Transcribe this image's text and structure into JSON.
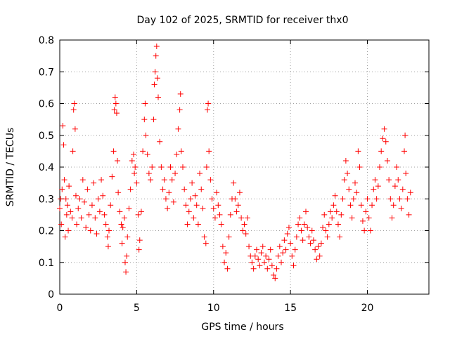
{
  "chart_data": {
    "type": "scatter",
    "title": "Day 102 of 2025, SRMTID for receiver thx0",
    "xlabel": "GPS time / hours",
    "ylabel": "SRMTID / TECUs",
    "xlim": [
      0,
      24
    ],
    "ylim": [
      0,
      0.8
    ],
    "xticks": [
      0,
      5,
      10,
      15,
      20
    ],
    "yticks": [
      0,
      0.1,
      0.2,
      0.3,
      0.4,
      0.5,
      0.6,
      0.7,
      0.8
    ],
    "xtick_labels": [
      "0",
      "5",
      "10",
      "15",
      "20"
    ],
    "ytick_labels": [
      "0",
      "0.1",
      "0.2",
      "0.3",
      "0.4",
      "0.5",
      "0.6",
      "0.7",
      "0.8"
    ],
    "grid": true,
    "marker": "+",
    "color": "#ff0000",
    "series": [
      {
        "name": "thx0",
        "points": [
          [
            0.0,
            0.27
          ],
          [
            0.05,
            0.3
          ],
          [
            0.1,
            0.22
          ],
          [
            0.15,
            0.33
          ],
          [
            0.2,
            0.53
          ],
          [
            0.25,
            0.47
          ],
          [
            0.3,
            0.36
          ],
          [
            0.35,
            0.18
          ],
          [
            0.4,
            0.3
          ],
          [
            0.45,
            0.25
          ],
          [
            0.5,
            0.28
          ],
          [
            0.55,
            0.2
          ],
          [
            0.6,
            0.34
          ],
          [
            0.7,
            0.26
          ],
          [
            0.8,
            0.24
          ],
          [
            0.85,
            0.45
          ],
          [
            0.9,
            0.58
          ],
          [
            0.95,
            0.6
          ],
          [
            1.0,
            0.52
          ],
          [
            1.05,
            0.31
          ],
          [
            1.1,
            0.22
          ],
          [
            1.2,
            0.27
          ],
          [
            1.3,
            0.3
          ],
          [
            1.4,
            0.24
          ],
          [
            1.5,
            0.36
          ],
          [
            1.6,
            0.29
          ],
          [
            1.7,
            0.21
          ],
          [
            1.8,
            0.33
          ],
          [
            1.9,
            0.25
          ],
          [
            2.0,
            0.2
          ],
          [
            2.1,
            0.28
          ],
          [
            2.2,
            0.35
          ],
          [
            2.3,
            0.24
          ],
          [
            2.4,
            0.19
          ],
          [
            2.5,
            0.3
          ],
          [
            2.6,
            0.26
          ],
          [
            2.7,
            0.36
          ],
          [
            2.8,
            0.31
          ],
          [
            2.9,
            0.25
          ],
          [
            3.0,
            0.22
          ],
          [
            3.1,
            0.18
          ],
          [
            3.15,
            0.15
          ],
          [
            3.2,
            0.2
          ],
          [
            3.3,
            0.28
          ],
          [
            3.4,
            0.37
          ],
          [
            3.5,
            0.45
          ],
          [
            3.55,
            0.58
          ],
          [
            3.6,
            0.62
          ],
          [
            3.65,
            0.6
          ],
          [
            3.7,
            0.57
          ],
          [
            3.75,
            0.42
          ],
          [
            3.8,
            0.32
          ],
          [
            3.9,
            0.26
          ],
          [
            4.0,
            0.22
          ],
          [
            4.05,
            0.16
          ],
          [
            4.1,
            0.21
          ],
          [
            4.2,
            0.24
          ],
          [
            4.25,
            0.1
          ],
          [
            4.3,
            0.07
          ],
          [
            4.35,
            0.12
          ],
          [
            4.4,
            0.18
          ],
          [
            4.5,
            0.27
          ],
          [
            4.6,
            0.33
          ],
          [
            4.7,
            0.42
          ],
          [
            4.8,
            0.44
          ],
          [
            4.85,
            0.38
          ],
          [
            4.9,
            0.4
          ],
          [
            5.0,
            0.35
          ],
          [
            5.1,
            0.25
          ],
          [
            5.15,
            0.14
          ],
          [
            5.2,
            0.17
          ],
          [
            5.3,
            0.26
          ],
          [
            5.4,
            0.45
          ],
          [
            5.5,
            0.55
          ],
          [
            5.55,
            0.6
          ],
          [
            5.6,
            0.5
          ],
          [
            5.7,
            0.44
          ],
          [
            5.8,
            0.38
          ],
          [
            5.9,
            0.36
          ],
          [
            6.0,
            0.4
          ],
          [
            6.1,
            0.55
          ],
          [
            6.15,
            0.66
          ],
          [
            6.2,
            0.7
          ],
          [
            6.25,
            0.75
          ],
          [
            6.3,
            0.78
          ],
          [
            6.35,
            0.68
          ],
          [
            6.4,
            0.62
          ],
          [
            6.5,
            0.48
          ],
          [
            6.6,
            0.4
          ],
          [
            6.7,
            0.33
          ],
          [
            6.8,
            0.36
          ],
          [
            6.9,
            0.3
          ],
          [
            7.0,
            0.27
          ],
          [
            7.1,
            0.32
          ],
          [
            7.2,
            0.4
          ],
          [
            7.3,
            0.36
          ],
          [
            7.4,
            0.29
          ],
          [
            7.5,
            0.38
          ],
          [
            7.6,
            0.44
          ],
          [
            7.7,
            0.52
          ],
          [
            7.8,
            0.58
          ],
          [
            7.85,
            0.63
          ],
          [
            7.9,
            0.45
          ],
          [
            8.0,
            0.4
          ],
          [
            8.1,
            0.33
          ],
          [
            8.2,
            0.28
          ],
          [
            8.3,
            0.22
          ],
          [
            8.4,
            0.26
          ],
          [
            8.5,
            0.3
          ],
          [
            8.6,
            0.35
          ],
          [
            8.7,
            0.24
          ],
          [
            8.8,
            0.31
          ],
          [
            8.9,
            0.28
          ],
          [
            9.0,
            0.22
          ],
          [
            9.1,
            0.38
          ],
          [
            9.2,
            0.33
          ],
          [
            9.3,
            0.27
          ],
          [
            9.4,
            0.18
          ],
          [
            9.5,
            0.16
          ],
          [
            9.55,
            0.4
          ],
          [
            9.6,
            0.58
          ],
          [
            9.65,
            0.6
          ],
          [
            9.7,
            0.45
          ],
          [
            9.8,
            0.36
          ],
          [
            9.9,
            0.3
          ],
          [
            10.0,
            0.27
          ],
          [
            10.1,
            0.24
          ],
          [
            10.2,
            0.32
          ],
          [
            10.3,
            0.28
          ],
          [
            10.4,
            0.25
          ],
          [
            10.5,
            0.22
          ],
          [
            10.6,
            0.15
          ],
          [
            10.7,
            0.1
          ],
          [
            10.8,
            0.13
          ],
          [
            10.9,
            0.08
          ],
          [
            11.0,
            0.18
          ],
          [
            11.1,
            0.25
          ],
          [
            11.2,
            0.3
          ],
          [
            11.3,
            0.35
          ],
          [
            11.4,
            0.3
          ],
          [
            11.5,
            0.26
          ],
          [
            11.6,
            0.28
          ],
          [
            11.7,
            0.32
          ],
          [
            11.8,
            0.24
          ],
          [
            11.9,
            0.2
          ],
          [
            12.0,
            0.22
          ],
          [
            12.1,
            0.19
          ],
          [
            12.2,
            0.24
          ],
          [
            12.3,
            0.15
          ],
          [
            12.4,
            0.12
          ],
          [
            12.5,
            0.1
          ],
          [
            12.6,
            0.08
          ],
          [
            12.7,
            0.12
          ],
          [
            12.8,
            0.14
          ],
          [
            12.9,
            0.11
          ],
          [
            13.0,
            0.09
          ],
          [
            13.1,
            0.13
          ],
          [
            13.2,
            0.15
          ],
          [
            13.3,
            0.1
          ],
          [
            13.4,
            0.12
          ],
          [
            13.5,
            0.08
          ],
          [
            13.6,
            0.11
          ],
          [
            13.7,
            0.14
          ],
          [
            13.8,
            0.09
          ],
          [
            13.9,
            0.06
          ],
          [
            14.0,
            0.05
          ],
          [
            14.1,
            0.08
          ],
          [
            14.2,
            0.12
          ],
          [
            14.3,
            0.15
          ],
          [
            14.4,
            0.1
          ],
          [
            14.5,
            0.13
          ],
          [
            14.6,
            0.17
          ],
          [
            14.7,
            0.14
          ],
          [
            14.8,
            0.19
          ],
          [
            14.9,
            0.21
          ],
          [
            15.0,
            0.16
          ],
          [
            15.1,
            0.12
          ],
          [
            15.2,
            0.09
          ],
          [
            15.3,
            0.14
          ],
          [
            15.4,
            0.18
          ],
          [
            15.5,
            0.22
          ],
          [
            15.6,
            0.24
          ],
          [
            15.7,
            0.2
          ],
          [
            15.8,
            0.17
          ],
          [
            15.9,
            0.22
          ],
          [
            16.0,
            0.26
          ],
          [
            16.1,
            0.21
          ],
          [
            16.2,
            0.18
          ],
          [
            16.3,
            0.16
          ],
          [
            16.4,
            0.2
          ],
          [
            16.5,
            0.17
          ],
          [
            16.6,
            0.14
          ],
          [
            16.7,
            0.11
          ],
          [
            16.8,
            0.15
          ],
          [
            16.9,
            0.12
          ],
          [
            17.0,
            0.16
          ],
          [
            17.1,
            0.21
          ],
          [
            17.2,
            0.25
          ],
          [
            17.3,
            0.2
          ],
          [
            17.4,
            0.18
          ],
          [
            17.5,
            0.22
          ],
          [
            17.6,
            0.26
          ],
          [
            17.7,
            0.24
          ],
          [
            17.8,
            0.28
          ],
          [
            17.9,
            0.31
          ],
          [
            18.0,
            0.26
          ],
          [
            18.1,
            0.22
          ],
          [
            18.2,
            0.18
          ],
          [
            18.3,
            0.25
          ],
          [
            18.4,
            0.3
          ],
          [
            18.5,
            0.36
          ],
          [
            18.6,
            0.42
          ],
          [
            18.7,
            0.38
          ],
          [
            18.8,
            0.33
          ],
          [
            18.9,
            0.28
          ],
          [
            19.0,
            0.24
          ],
          [
            19.1,
            0.3
          ],
          [
            19.2,
            0.35
          ],
          [
            19.3,
            0.32
          ],
          [
            19.4,
            0.45
          ],
          [
            19.5,
            0.4
          ],
          [
            19.6,
            0.28
          ],
          [
            19.7,
            0.23
          ],
          [
            19.8,
            0.2
          ],
          [
            19.9,
            0.26
          ],
          [
            20.0,
            0.3
          ],
          [
            20.1,
            0.24
          ],
          [
            20.2,
            0.2
          ],
          [
            20.3,
            0.28
          ],
          [
            20.4,
            0.33
          ],
          [
            20.5,
            0.36
          ],
          [
            20.6,
            0.3
          ],
          [
            20.7,
            0.34
          ],
          [
            20.8,
            0.4
          ],
          [
            20.9,
            0.45
          ],
          [
            21.0,
            0.49
          ],
          [
            21.1,
            0.52
          ],
          [
            21.2,
            0.48
          ],
          [
            21.3,
            0.42
          ],
          [
            21.4,
            0.36
          ],
          [
            21.5,
            0.3
          ],
          [
            21.6,
            0.24
          ],
          [
            21.7,
            0.28
          ],
          [
            21.8,
            0.34
          ],
          [
            21.9,
            0.4
          ],
          [
            22.0,
            0.36
          ],
          [
            22.1,
            0.3
          ],
          [
            22.2,
            0.27
          ],
          [
            22.3,
            0.33
          ],
          [
            22.4,
            0.45
          ],
          [
            22.45,
            0.5
          ],
          [
            22.5,
            0.38
          ],
          [
            22.6,
            0.3
          ],
          [
            22.7,
            0.25
          ],
          [
            22.8,
            0.32
          ]
        ]
      }
    ]
  }
}
